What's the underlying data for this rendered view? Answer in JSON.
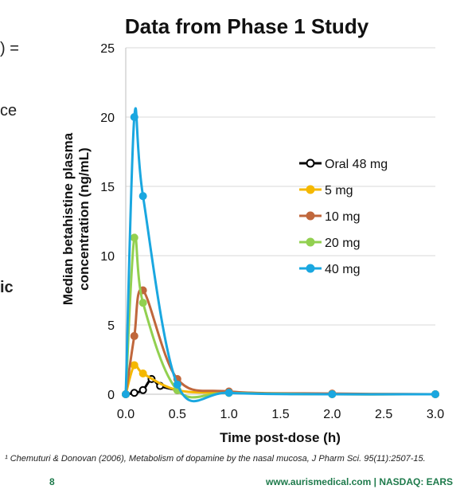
{
  "slide": {
    "left_fragments": [
      ") =",
      "ce",
      "ic"
    ],
    "footnote": "¹ Chemuturi & Donovan (2006), Metabolism of dopamine by the nasal mucosa, J Pharm Sci. 95(11):2507-15.",
    "page_number": "8",
    "footer_right": "www.aurismedical.com |  NASDAQ: EARS"
  },
  "chart_data": {
    "type": "line",
    "title": "Data from Phase 1 Study",
    "xlabel": "Time post-dose (h)",
    "ylabel_lines": [
      "Median betahistine plasma",
      "concentration (ng/mL)"
    ],
    "xlim": [
      0,
      3
    ],
    "ylim": [
      0,
      25
    ],
    "x_ticks": [
      "0.0",
      "0.5",
      "1.0",
      "1.5",
      "2.0",
      "2.5",
      "3.0"
    ],
    "y_ticks": [
      "0",
      "5",
      "10",
      "15",
      "20",
      "25"
    ],
    "grid": "horizontal",
    "legend_position": "right",
    "series": [
      {
        "name": "Oral 48 mg",
        "color": "#000000",
        "x": [
          0,
          0.083,
          0.167,
          0.25,
          0.333,
          0.5
        ],
        "y": [
          0,
          0.1,
          0.3,
          1.1,
          0.6,
          0.3
        ]
      },
      {
        "name": "5 mg",
        "color": "#f5b800",
        "x": [
          0,
          0.083,
          0.167,
          0.5,
          1.0,
          2.0,
          3.0
        ],
        "y": [
          0,
          2.1,
          1.5,
          0.3,
          0.1,
          0.0,
          0.0
        ]
      },
      {
        "name": "10 mg",
        "color": "#c0673c",
        "x": [
          0,
          0.083,
          0.167,
          0.5,
          1.0,
          2.0,
          3.0
        ],
        "y": [
          0,
          4.2,
          7.5,
          1.1,
          0.2,
          0.05,
          0.0
        ]
      },
      {
        "name": "20 mg",
        "color": "#92d050",
        "x": [
          0,
          0.083,
          0.167,
          0.5,
          1.0,
          2.0,
          3.0
        ],
        "y": [
          0,
          11.3,
          6.6,
          0.3,
          0.1,
          0.0,
          0.0
        ]
      },
      {
        "name": "40 mg",
        "color": "#1aa7e0",
        "x": [
          0,
          0.083,
          0.167,
          0.5,
          1.0,
          2.0,
          3.0
        ],
        "y": [
          0,
          20.0,
          14.3,
          0.7,
          0.1,
          0.0,
          0.0
        ]
      }
    ]
  }
}
